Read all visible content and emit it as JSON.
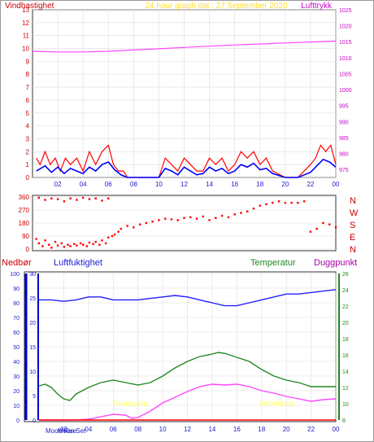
{
  "header": {
    "left_title": "Vindhastighet",
    "center_title": "24 hour graph dat : 27 September 2020",
    "right_title": "Lufttrykk"
  },
  "bottom_titles": {
    "nedbor": "Nedbør",
    "luftfuktighet": "Luftfuktighet",
    "temperatur": "Temperatur",
    "duggpunkt": "Duggpunkt"
  },
  "moon": {
    "rise_label": "Moon Rise",
    "set_label": "Moon Set"
  },
  "colors": {
    "wind": "#ff0000",
    "wind_avg": "#0000ff",
    "pressure": "#ff44ff",
    "direction": "#ff0000",
    "humidity": "#2020ff",
    "temperature": "#228822",
    "dewpoint": "#ff44ff",
    "rain": "#ff0000",
    "sun": "#ffff55",
    "dark_grid": "#222222",
    "title_center": "#ffdd33"
  },
  "chart_data": [
    {
      "type": "line",
      "name": "Vindhastighet / Lufttrykk",
      "x_ticks": [
        "02",
        "04",
        "06",
        "08",
        "10",
        "12",
        "14",
        "16",
        "18",
        "20",
        "22",
        "00"
      ],
      "y_left": {
        "label": "Vindhastighet",
        "ticks": [
          0,
          1,
          2,
          3,
          4,
          5,
          6,
          7,
          8,
          9,
          10,
          11,
          12,
          13
        ],
        "range": [
          0,
          13
        ]
      },
      "y_right": {
        "label": "Lufttrykk",
        "ticks": [
          975,
          980,
          985,
          990,
          995,
          1000,
          1005,
          1010,
          1015,
          1020,
          1025
        ],
        "range": [
          972.5,
          1025
        ]
      },
      "series": [
        {
          "key": "pressure",
          "axis": "right",
          "x": [
            0,
            2,
            4,
            6,
            8,
            10,
            12,
            14,
            16,
            18,
            20,
            22,
            24
          ],
          "values": [
            1012.0,
            1011.8,
            1011.8,
            1012.0,
            1012.4,
            1012.8,
            1013.2,
            1013.6,
            1014.0,
            1014.3,
            1014.6,
            1014.9,
            1015.2
          ]
        },
        {
          "key": "wind_gust",
          "axis": "left",
          "x": [
            0.3,
            0.6,
            1.0,
            1.4,
            1.8,
            2.2,
            2.6,
            3.0,
            3.5,
            4.0,
            4.5,
            5.0,
            5.5,
            6.0,
            6.4,
            6.8,
            7.2,
            7.5,
            8.0,
            9.0,
            10.0,
            10.5,
            11.0,
            11.5,
            12.0,
            12.5,
            13.0,
            13.5,
            14.0,
            14.5,
            15.0,
            15.5,
            16.0,
            16.5,
            17.0,
            17.5,
            18.0,
            18.5,
            19.0,
            20.0,
            21.0,
            21.5,
            22.0,
            22.4,
            22.8,
            23.2,
            23.6,
            24.0
          ],
          "values": [
            1.5,
            1.0,
            2.0,
            1.0,
            1.5,
            0.5,
            1.5,
            1.0,
            1.5,
            0.5,
            2.0,
            1.0,
            2.0,
            2.5,
            1.0,
            0.5,
            0.5,
            0.0,
            0.0,
            0.0,
            0.0,
            1.5,
            1.0,
            0.5,
            1.5,
            1.0,
            0.5,
            0.5,
            1.5,
            1.0,
            1.5,
            0.5,
            1.0,
            2.0,
            1.5,
            2.0,
            1.0,
            1.5,
            0.5,
            0.0,
            0.0,
            0.5,
            1.0,
            1.5,
            2.5,
            2.0,
            2.5,
            1.0
          ]
        },
        {
          "key": "wind_avg",
          "axis": "left",
          "x": [
            0.3,
            1.0,
            1.5,
            2.0,
            2.5,
            3.0,
            3.5,
            4.0,
            4.5,
            5.0,
            5.5,
            6.0,
            6.5,
            7.0,
            7.5,
            8.0,
            10.0,
            10.5,
            11.0,
            11.5,
            12.0,
            12.5,
            13.0,
            13.5,
            14.0,
            14.5,
            15.0,
            15.5,
            16.0,
            16.5,
            17.0,
            17.5,
            18.0,
            18.5,
            19.0,
            20.0,
            21.0,
            22.0,
            22.5,
            23.0,
            23.5,
            24.0
          ],
          "values": [
            0.5,
            0.9,
            0.4,
            0.8,
            0.3,
            0.7,
            0.5,
            0.3,
            0.8,
            0.5,
            1.0,
            1.2,
            0.6,
            0.2,
            0.0,
            0.0,
            0.0,
            0.7,
            0.5,
            0.2,
            0.8,
            0.5,
            0.2,
            0.3,
            0.8,
            0.5,
            0.7,
            0.3,
            0.5,
            1.0,
            0.8,
            1.1,
            0.6,
            0.7,
            0.3,
            0.0,
            0.0,
            0.4,
            0.9,
            1.4,
            1.2,
            0.8
          ]
        }
      ]
    },
    {
      "type": "scatter",
      "name": "Vindretning",
      "y_ticks": [
        0,
        90,
        180,
        270,
        360
      ],
      "y_range": [
        0,
        360
      ],
      "compass_labels": [
        "N",
        "W",
        "S",
        "E",
        "N"
      ],
      "series": [
        {
          "key": "direction",
          "x": [
            0.3,
            0.5,
            0.8,
            1.0,
            1.3,
            1.5,
            1.8,
            2.0,
            2.3,
            2.5,
            2.8,
            3.0,
            3.3,
            3.5,
            3.8,
            4.0,
            4.3,
            4.5,
            4.8,
            5.0,
            5.3,
            5.5,
            5.8,
            6.0,
            6.3,
            6.5,
            6.8,
            7.0,
            7.5,
            8.0,
            8.5,
            9.0,
            9.5,
            10.0,
            10.5,
            11.0,
            11.5,
            12.0,
            12.5,
            13.0,
            13.5,
            14.0,
            14.5,
            15.0,
            15.5,
            16.0,
            16.5,
            17.0,
            17.5,
            18.0,
            18.5,
            19.0,
            19.5,
            20.0,
            20.5,
            21.0,
            21.5,
            22.0,
            22.5,
            23.0,
            23.5,
            24.0
          ],
          "values": [
            70,
            40,
            20,
            60,
            30,
            10,
            50,
            25,
            40,
            15,
            30,
            20,
            35,
            25,
            40,
            30,
            20,
            45,
            35,
            50,
            30,
            60,
            40,
            80,
            90,
            100,
            120,
            140,
            160,
            150,
            170,
            180,
            190,
            200,
            210,
            205,
            200,
            215,
            220,
            210,
            225,
            200,
            215,
            230,
            220,
            240,
            250,
            260,
            280,
            300,
            310,
            320,
            330,
            320,
            320,
            320,
            330,
            120,
            140,
            180,
            170,
            150
          ]
        },
        {
          "key": "direction_high",
          "x": [
            0.5,
            1.0,
            1.5,
            2.0,
            2.5,
            3.0,
            3.5,
            4.0,
            4.5,
            5.0,
            5.5,
            6.0
          ],
          "values": [
            355,
            340,
            350,
            345,
            330,
            350,
            340,
            355,
            345,
            350,
            335,
            350
          ]
        }
      ]
    },
    {
      "type": "line",
      "name": "Nedbør / Luftfuktighet / Temperatur / Duggpunkt",
      "x_ticks": [
        "02",
        "04",
        "06",
        "08",
        "10",
        "12",
        "14",
        "16",
        "18",
        "20",
        "22",
        "00"
      ],
      "y_nedbor": {
        "label": "Nedbør",
        "ticks": [
          0,
          10,
          20,
          30,
          40,
          50,
          60,
          70,
          80,
          90,
          100
        ],
        "range": [
          0,
          100
        ]
      },
      "y_humidity": {
        "label": "Luftfuktighet",
        "ticks": [
          0,
          5,
          10,
          15,
          20,
          25,
          30
        ],
        "range": [
          0,
          30
        ]
      },
      "y_temp": {
        "label": "Temperatur",
        "ticks": [
          8,
          10,
          12,
          14,
          16,
          18,
          20,
          22,
          24,
          26
        ],
        "range": [
          8,
          26
        ]
      },
      "annotations": [
        "Soloppgang",
        "Solnedgang",
        "Moon Set",
        "Moon Rise"
      ],
      "series": [
        {
          "key": "humidity",
          "axis": "nedbor",
          "x": [
            0,
            1,
            2,
            3,
            4,
            5,
            6,
            7,
            8,
            9,
            10,
            11,
            12,
            13,
            14,
            15,
            16,
            17,
            18,
            19,
            20,
            21,
            22,
            23,
            24
          ],
          "values": [
            82,
            82,
            81,
            82,
            84,
            84,
            82,
            82,
            82,
            83,
            84,
            85,
            84,
            82,
            80,
            78,
            78,
            80,
            82,
            84,
            86,
            86,
            87,
            88,
            89
          ]
        },
        {
          "key": "temperature",
          "axis": "temp",
          "x": [
            0,
            0.5,
            1,
            1.5,
            2,
            2.5,
            3,
            4,
            5,
            6,
            7,
            8,
            9,
            10,
            11,
            12,
            13,
            14,
            14.5,
            15,
            16,
            17,
            18,
            19,
            20,
            21,
            22,
            23,
            24
          ],
          "values": [
            12.2,
            12.4,
            12.0,
            11.2,
            10.6,
            10.4,
            11.2,
            12.0,
            12.6,
            12.9,
            12.6,
            12.3,
            12.6,
            13.4,
            14.4,
            15.2,
            15.8,
            16.1,
            16.3,
            16.2,
            15.7,
            15.2,
            14.2,
            13.4,
            12.9,
            12.6,
            12.1,
            12.1,
            12.1
          ]
        },
        {
          "key": "dewpoint",
          "axis": "temp",
          "x": [
            0,
            1,
            2,
            3,
            4,
            5,
            6,
            7,
            7.5,
            8,
            9,
            10,
            11,
            12,
            13,
            14,
            15,
            16,
            17,
            18,
            19,
            20,
            21,
            22,
            23,
            24
          ],
          "values": [
            8.0,
            8.0,
            8.0,
            8.0,
            8.1,
            8.4,
            8.7,
            8.6,
            8.2,
            8.3,
            9.1,
            10.1,
            10.8,
            11.5,
            12.1,
            12.4,
            12.3,
            12.4,
            12.1,
            11.6,
            11.3,
            10.9,
            10.6,
            10.3,
            10.5,
            10.6
          ]
        },
        {
          "key": "rain",
          "axis": "nedbor",
          "x": [
            0,
            24
          ],
          "values": [
            0,
            0
          ]
        }
      ]
    }
  ]
}
